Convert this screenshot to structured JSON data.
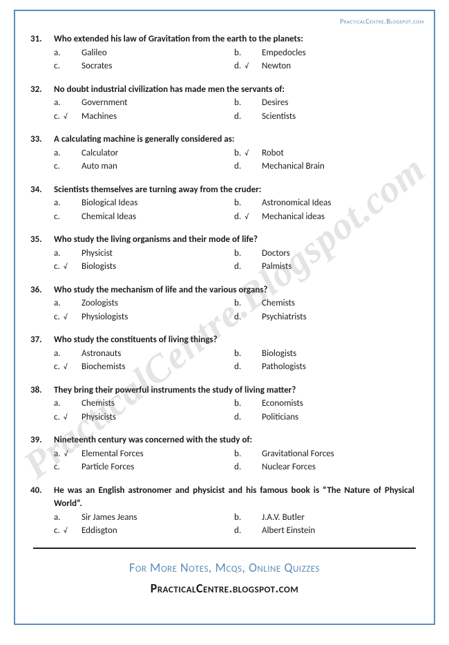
{
  "header": {
    "url": "PracticalCentre.Blogspot.com"
  },
  "watermark": "PracticalCentre.Blogspot.com",
  "questions": [
    {
      "num": "31.",
      "text": "Who extended his law of Gravitation from the earth to the planets:",
      "justify": false,
      "options": [
        {
          "label": "a.",
          "text": "Galileo",
          "correct": false
        },
        {
          "label": "b.",
          "text": "Empedocles",
          "correct": false
        },
        {
          "label": "c.",
          "text": "Socrates",
          "correct": false
        },
        {
          "label": "d.",
          "text": "Newton",
          "correct": true
        }
      ]
    },
    {
      "num": "32.",
      "text": "No doubt industrial civilization has made men the servants of:",
      "justify": false,
      "options": [
        {
          "label": "a.",
          "text": "Government",
          "correct": false
        },
        {
          "label": "b.",
          "text": "Desires",
          "correct": false
        },
        {
          "label": "c.",
          "text": "Machines",
          "correct": true
        },
        {
          "label": "d.",
          "text": "Scientists",
          "correct": false
        }
      ]
    },
    {
      "num": "33.",
      "text": "A calculating machine is generally considered as:",
      "justify": false,
      "options": [
        {
          "label": "a.",
          "text": "Calculator",
          "correct": false
        },
        {
          "label": "b.",
          "text": "Robot",
          "correct": true
        },
        {
          "label": "c.",
          "text": "Auto man",
          "correct": false
        },
        {
          "label": "d.",
          "text": "Mechanical Brain",
          "correct": false
        }
      ]
    },
    {
      "num": "34.",
      "text": "Scientists themselves are turning away from the cruder:",
      "justify": false,
      "options": [
        {
          "label": "a.",
          "text": "Biological Ideas",
          "correct": false
        },
        {
          "label": "b.",
          "text": "Astronomical Ideas",
          "correct": false
        },
        {
          "label": "c.",
          "text": "Chemical Ideas",
          "correct": false
        },
        {
          "label": "d.",
          "text": "Mechanical ideas",
          "correct": true
        }
      ]
    },
    {
      "num": "35.",
      "text": "Who study the living organisms and their mode of life?",
      "justify": false,
      "options": [
        {
          "label": "a.",
          "text": "Physicist",
          "correct": false
        },
        {
          "label": "b.",
          "text": "Doctors",
          "correct": false
        },
        {
          "label": "c.",
          "text": "Biologists",
          "correct": true
        },
        {
          "label": "d.",
          "text": "Palmists",
          "correct": false
        }
      ]
    },
    {
      "num": "36.",
      "text": "Who study the mechanism of life and the various organs?",
      "justify": false,
      "options": [
        {
          "label": "a.",
          "text": "Zoologists",
          "correct": false
        },
        {
          "label": "b.",
          "text": "Chemists",
          "correct": false
        },
        {
          "label": "c.",
          "text": "Physiologists",
          "correct": true
        },
        {
          "label": "d.",
          "text": "Psychiatrists",
          "correct": false
        }
      ]
    },
    {
      "num": "37.",
      "text": "Who study the constituents of living things?",
      "justify": false,
      "options": [
        {
          "label": "a.",
          "text": "Astronauts",
          "correct": false
        },
        {
          "label": "b.",
          "text": "Biologists",
          "correct": false
        },
        {
          "label": "c.",
          "text": "Biochemists",
          "correct": true
        },
        {
          "label": "d.",
          "text": "Pathologists",
          "correct": false
        }
      ]
    },
    {
      "num": "38.",
      "text": "They bring their powerful instruments the study of living matter?",
      "justify": false,
      "options": [
        {
          "label": "a.",
          "text": "Chemists",
          "correct": false
        },
        {
          "label": "b.",
          "text": "Economists",
          "correct": false
        },
        {
          "label": "c.",
          "text": "Physicists",
          "correct": true
        },
        {
          "label": "d.",
          "text": "Politicians",
          "correct": false
        }
      ]
    },
    {
      "num": "39.",
      "text": "Nineteenth century was concerned with the study of:",
      "justify": false,
      "options": [
        {
          "label": "a.",
          "text": "Elemental Forces",
          "correct": true
        },
        {
          "label": "b.",
          "text": "Gravitational Forces",
          "correct": false
        },
        {
          "label": "c.",
          "text": "Particle Forces",
          "correct": false
        },
        {
          "label": "d.",
          "text": "Nuclear Forces",
          "correct": false
        }
      ]
    },
    {
      "num": "40.",
      "text": "He was an English astronomer and physicist and his famous book is “The Nature of Physical World”.",
      "justify": true,
      "options": [
        {
          "label": "a.",
          "text": "Sir James Jeans",
          "correct": false
        },
        {
          "label": "b.",
          "text": "J.A.V. Butler",
          "correct": false
        },
        {
          "label": "c.",
          "text": "Eddisgton",
          "correct": true
        },
        {
          "label": "d.",
          "text": "Albert Einstein",
          "correct": false
        }
      ]
    }
  ],
  "footer": {
    "line1": "For More Notes, Mcqs, Online Quizzes",
    "line2": "PracticalCentre.blogspot.com"
  },
  "checkmark": "√"
}
